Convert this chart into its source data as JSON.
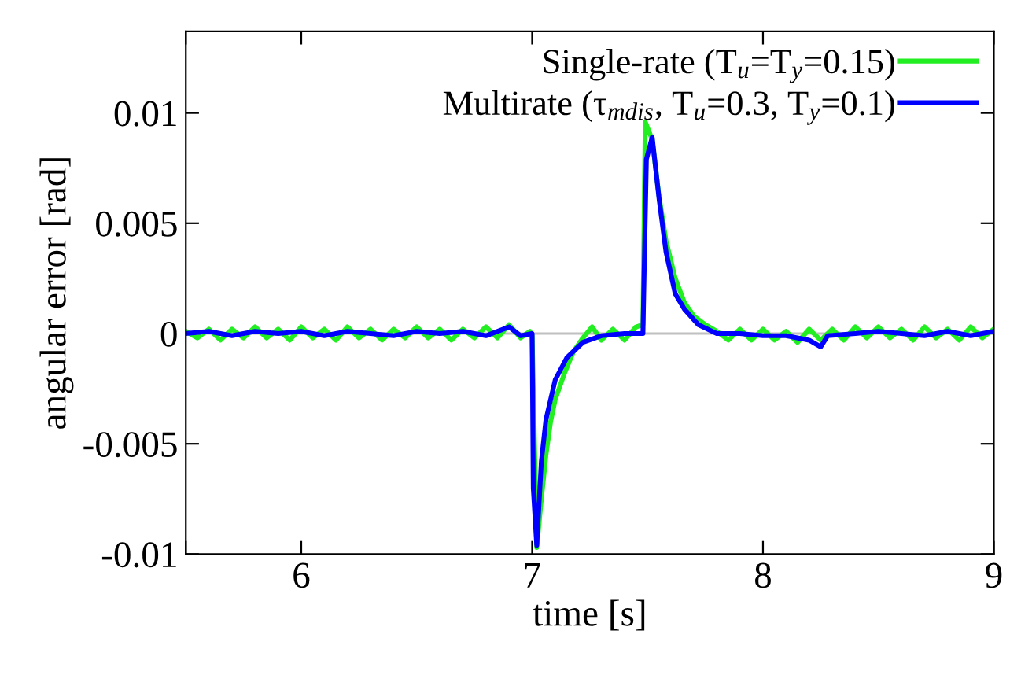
{
  "chart_data": {
    "type": "line",
    "xlabel": "time [s]",
    "ylabel": "angular error [rad]",
    "xlim": [
      5.5,
      9
    ],
    "xticks": [
      {
        "value": 5.5,
        "label": null
      },
      6,
      7,
      8,
      9
    ],
    "ylim": [
      -0.01,
      0.0137
    ],
    "yticks": [
      -0.01,
      -0.005,
      0,
      0.005,
      0.01
    ],
    "grid": false,
    "legend": "top right",
    "line_style": "solid",
    "marker": "none",
    "ref_lines": [
      {
        "axis": "y",
        "value": 0,
        "color": "#c0c0c0"
      }
    ],
    "series": [
      {
        "name": "Single-rate (T$_{u}$=T$_{y}$=0.15)",
        "color": "#22ee22",
        "x": [
          5.5,
          5.55,
          5.6,
          5.65,
          5.7,
          5.75,
          5.8,
          5.85,
          5.9,
          5.95,
          6.0,
          6.05,
          6.1,
          6.15,
          6.2,
          6.25,
          6.3,
          6.35,
          6.4,
          6.45,
          6.5,
          6.55,
          6.6,
          6.65,
          6.7,
          6.75,
          6.8,
          6.85,
          6.9,
          6.95,
          6.99,
          7.0,
          7.02,
          7.04,
          7.06,
          7.08,
          7.1,
          7.14,
          7.18,
          7.22,
          7.26,
          7.3,
          7.35,
          7.4,
          7.45,
          7.48,
          7.49,
          7.52,
          7.55,
          7.58,
          7.62,
          7.66,
          7.7,
          7.75,
          7.8,
          7.85,
          7.9,
          7.95,
          8.0,
          8.05,
          8.1,
          8.15,
          8.2,
          8.25,
          8.3,
          8.35,
          8.4,
          8.45,
          8.5,
          8.55,
          8.6,
          8.65,
          8.7,
          8.75,
          8.8,
          8.85,
          8.9,
          8.95,
          9.0
        ],
        "values": [
          0.0001,
          -0.0002,
          0.0002,
          -0.0003,
          0.0002,
          -0.0002,
          0.0003,
          -0.0002,
          0.0002,
          -0.0003,
          0.0003,
          -0.0002,
          0.0002,
          -0.0003,
          0.0003,
          -0.0002,
          0.0002,
          -0.0003,
          0.0002,
          -0.0002,
          0.0003,
          -0.0002,
          0.0002,
          -0.0003,
          0.0002,
          -0.0002,
          0.0003,
          -0.0002,
          0.0004,
          -0.0002,
          0.0001,
          -0.0001,
          -0.0097,
          -0.0075,
          -0.0055,
          -0.004,
          -0.003,
          -0.0018,
          -0.0008,
          -0.0002,
          0.0003,
          -0.0003,
          0.0002,
          -0.0003,
          0.0003,
          0.0004,
          0.0096,
          0.0088,
          0.0062,
          0.0042,
          0.0025,
          0.0014,
          0.0008,
          0.0004,
          0.0001,
          -0.0003,
          0.0002,
          -0.0003,
          0.0002,
          -0.0003,
          0.0001,
          -0.0004,
          0.0002,
          -0.0003,
          0.0002,
          -0.0003,
          0.0003,
          -0.0002,
          0.0003,
          -0.0002,
          0.0002,
          -0.0003,
          0.0003,
          -0.0002,
          0.0002,
          -0.0003,
          0.0003,
          -0.0002,
          0.0002
        ]
      },
      {
        "name": "Multirate (τ$_{mdis}$, T$_{u}$=0.3, T$_{y}$=0.1)",
        "color": "#0000ff",
        "x": [
          5.5,
          5.6,
          5.7,
          5.8,
          5.9,
          6.0,
          6.1,
          6.2,
          6.3,
          6.4,
          6.5,
          6.6,
          6.7,
          6.8,
          6.9,
          6.95,
          7.0,
          7.005,
          7.02,
          7.04,
          7.06,
          7.1,
          7.15,
          7.22,
          7.3,
          7.4,
          7.48,
          7.495,
          7.52,
          7.55,
          7.58,
          7.62,
          7.66,
          7.72,
          7.8,
          7.9,
          8.0,
          8.1,
          8.2,
          8.25,
          8.28,
          8.4,
          8.5,
          8.6,
          8.7,
          8.8,
          8.9,
          9.0
        ],
        "values": [
          0.0,
          0.0001,
          -0.0001,
          0.0001,
          0.0,
          0.0001,
          -0.0001,
          0.0001,
          0.0,
          -0.0001,
          0.0001,
          0.0,
          0.0001,
          -0.0001,
          0.0003,
          -0.0001,
          0.0,
          -0.007,
          -0.0096,
          -0.0058,
          -0.0039,
          -0.0021,
          -0.0011,
          -0.0004,
          -0.0001,
          0.0,
          0.0,
          0.0079,
          0.0089,
          0.0061,
          0.0037,
          0.0018,
          0.0011,
          0.0004,
          0.0,
          0.0,
          -0.0001,
          -0.0001,
          -0.0003,
          -0.0006,
          -0.0001,
          0.0,
          0.0001,
          0.0,
          -0.0001,
          0.0001,
          -0.0001,
          0.0001
        ]
      }
    ]
  }
}
